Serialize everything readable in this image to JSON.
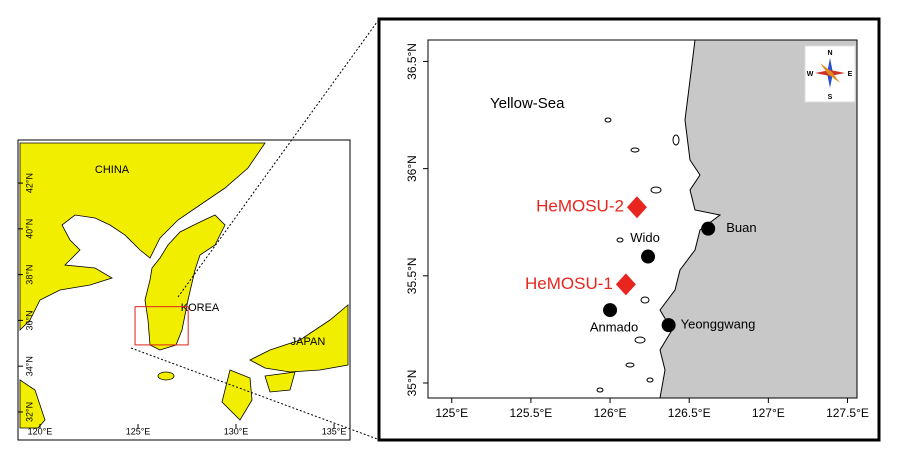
{
  "inset_map": {
    "xlim": [
      118.98,
      135.56
    ],
    "ylim": [
      31.3,
      43.75
    ],
    "xticks": [
      {
        "value": 120,
        "label": "120°E"
      },
      {
        "value": 125,
        "label": "125°E"
      },
      {
        "value": 130,
        "label": "130°E"
      },
      {
        "value": 135,
        "label": "135°E"
      }
    ],
    "yticks": [
      {
        "value": 32,
        "label": "32°N"
      },
      {
        "value": 34,
        "label": "34°N"
      },
      {
        "value": 36,
        "label": "36°N"
      },
      {
        "value": 38,
        "label": "38°N"
      },
      {
        "value": 40,
        "label": "40°N"
      },
      {
        "value": 42,
        "label": "42°N"
      }
    ],
    "labels": [
      "CHINA",
      "KOREA",
      "JAPAN"
    ]
  },
  "main_map": {
    "xlim": [
      124.85,
      127.56
    ],
    "ylim": [
      34.93,
      36.6
    ],
    "xticks": [
      {
        "value": 125,
        "label": "125°E"
      },
      {
        "value": 125.5,
        "label": "125.5°E"
      },
      {
        "value": 126,
        "label": "126°E"
      },
      {
        "value": 126.5,
        "label": "126.5°E"
      },
      {
        "value": 127,
        "label": "127°E"
      },
      {
        "value": 127.5,
        "label": "127.5°E"
      }
    ],
    "yticks": [
      {
        "value": 35,
        "label": "35°N"
      },
      {
        "value": 35.5,
        "label": "35.5°N"
      },
      {
        "value": 36,
        "label": "36°N"
      },
      {
        "value": 36.5,
        "label": "36.5°N"
      }
    ],
    "sea_label": "Yellow-Sea",
    "stations": [
      {
        "name": "HeMOSU-2",
        "lon": 126.17,
        "lat": 35.82,
        "marker": "diamond",
        "color": "#e8261f"
      },
      {
        "name": "Buan",
        "lon": 126.62,
        "lat": 35.72,
        "marker": "circle",
        "color": "#000000"
      },
      {
        "name": "Wido",
        "lon": 126.24,
        "lat": 35.59,
        "marker": "circle",
        "color": "#000000"
      },
      {
        "name": "HeMOSU-1",
        "lon": 126.1,
        "lat": 35.46,
        "marker": "diamond",
        "color": "#e8261f"
      },
      {
        "name": "Anmado",
        "lon": 126.0,
        "lat": 35.34,
        "marker": "circle",
        "color": "#000000"
      },
      {
        "name": "Yeonggwang",
        "lon": 126.37,
        "lat": 35.27,
        "marker": "circle",
        "color": "#000000"
      }
    ],
    "compass": {
      "N": "N",
      "E": "E",
      "S": "S",
      "W": "W"
    }
  }
}
